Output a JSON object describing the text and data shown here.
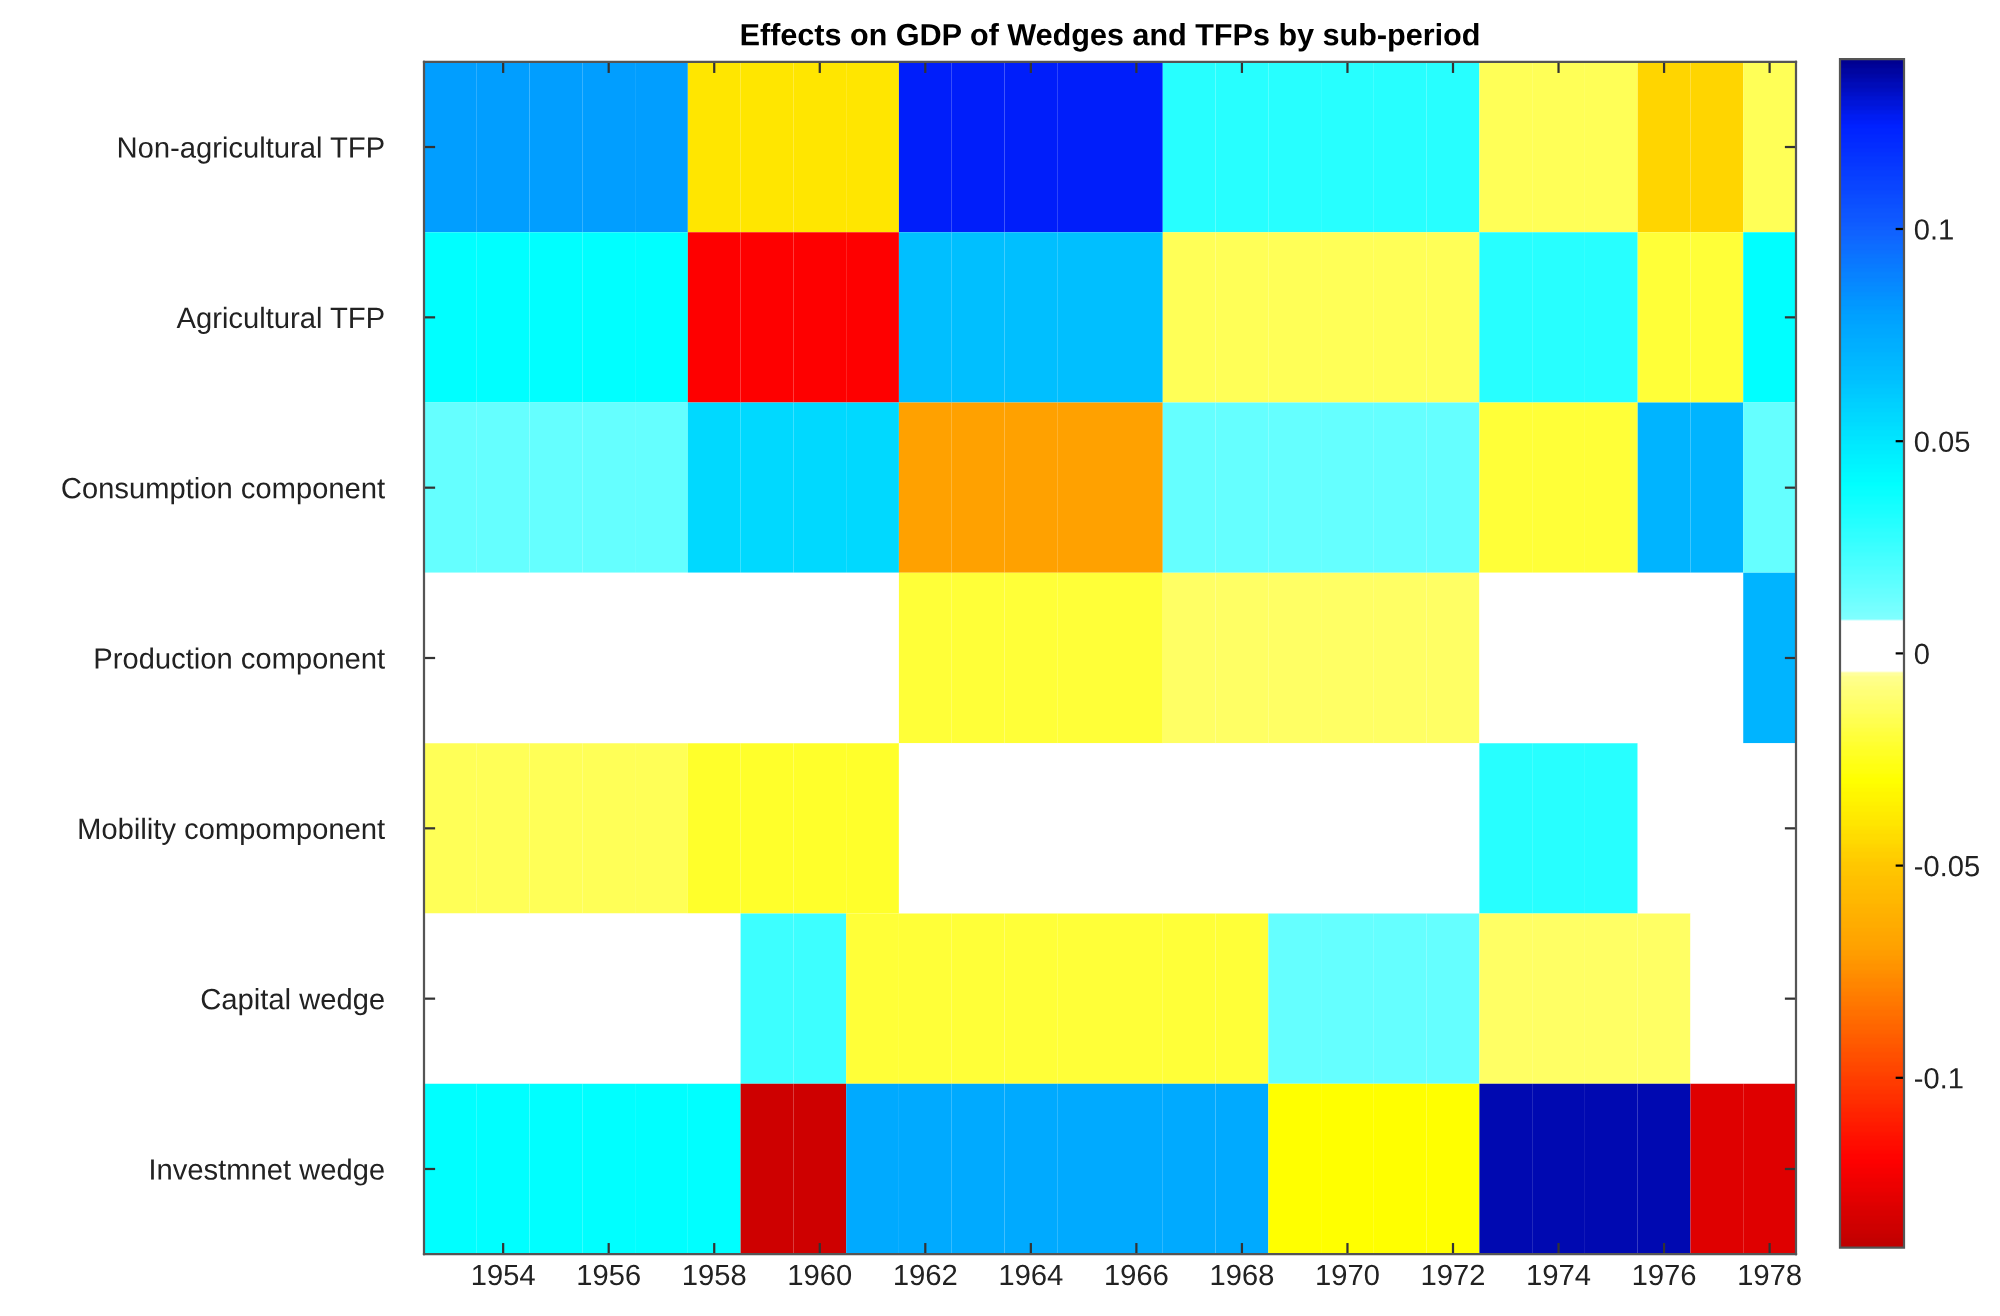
{
  "chart_data": {
    "type": "heatmap",
    "title": "Effects on GDP of Wedges and TFPs by sub-period",
    "categories": [
      null,
      "1954",
      null,
      "1956",
      null,
      "1958",
      null,
      "1960",
      null,
      "1962",
      null,
      "1964",
      null,
      "1966",
      null,
      "1968",
      null,
      "1970",
      null,
      "1972",
      null,
      "1974",
      null,
      "1976",
      null,
      "1978"
    ],
    "y_categories": [
      "Non-agricultural TFP",
      "Agricultural TFP",
      "Consumption component",
      "Production component",
      "Mobility compomponent",
      "Capital wedge",
      "Investmnet wedge"
    ],
    "cells": [
      [
        0.08,
        0.08,
        0.08,
        0.08,
        0.08,
        -0.04,
        -0.04,
        -0.04,
        -0.04,
        0.125,
        0.125,
        0.125,
        0.125,
        0.125,
        0.03,
        0.03,
        0.03,
        0.03,
        0.03,
        0.03,
        -0.015,
        -0.015,
        -0.015,
        -0.045,
        -0.045,
        -0.015
      ],
      [
        0.04,
        0.04,
        0.04,
        0.04,
        0.04,
        -0.12,
        -0.12,
        -0.12,
        -0.12,
        0.065,
        0.065,
        0.065,
        0.065,
        0.065,
        -0.015,
        -0.015,
        -0.015,
        -0.015,
        -0.015,
        -0.015,
        0.03,
        0.03,
        0.03,
        -0.02,
        -0.02,
        0.04
      ],
      [
        0.015,
        0.015,
        0.015,
        0.015,
        0.015,
        0.055,
        0.055,
        0.055,
        0.055,
        -0.07,
        -0.07,
        -0.07,
        -0.07,
        -0.07,
        0.015,
        0.015,
        0.015,
        0.015,
        0.015,
        0.015,
        -0.02,
        -0.02,
        -0.02,
        0.07,
        0.07,
        0.015
      ],
      [
        0,
        0,
        0,
        0,
        0,
        0,
        0,
        0,
        0,
        -0.02,
        -0.02,
        -0.02,
        -0.02,
        -0.02,
        -0.013,
        -0.013,
        -0.013,
        -0.013,
        -0.013,
        -0.013,
        0,
        0,
        0,
        0,
        0,
        0.07
      ],
      [
        -0.015,
        -0.015,
        -0.015,
        -0.015,
        -0.015,
        -0.022,
        -0.022,
        -0.022,
        -0.022,
        0,
        0,
        0,
        0,
        0,
        0,
        0,
        0,
        0,
        0,
        0,
        0.03,
        0.03,
        0.03,
        0,
        0,
        0
      ],
      [
        0,
        0,
        0,
        0,
        0,
        0,
        0.025,
        0.025,
        -0.02,
        -0.02,
        -0.02,
        -0.02,
        -0.02,
        -0.02,
        -0.02,
        -0.02,
        0.015,
        0.015,
        0.015,
        0.015,
        -0.013,
        -0.013,
        -0.013,
        -0.013,
        0,
        0
      ],
      [
        0.04,
        0.04,
        0.04,
        0.04,
        0.04,
        0.04,
        -0.135,
        -0.135,
        0.075,
        0.075,
        0.075,
        0.075,
        0.075,
        0.075,
        0.075,
        0.075,
        -0.03,
        -0.03,
        -0.03,
        -0.03,
        0.135,
        0.135,
        0.135,
        0.135,
        -0.13,
        -0.13
      ]
    ],
    "clim": [
      -0.14,
      0.14
    ],
    "cticks": [
      -0.1,
      -0.05,
      0,
      0.05,
      0.1
    ]
  }
}
